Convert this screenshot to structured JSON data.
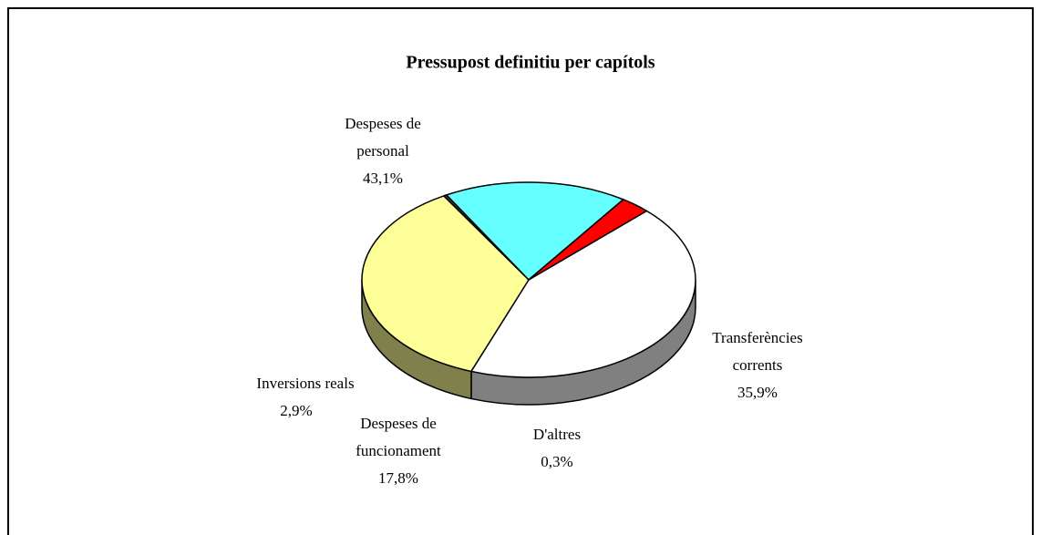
{
  "chart_data": {
    "type": "pie",
    "title": "Pressupost definitiu per capítols",
    "categories": [
      "Despeses de personal",
      "Transferències corrents",
      "D'altres",
      "Despeses de funcionament",
      "Inversions reals"
    ],
    "values": [
      43.1,
      35.9,
      0.3,
      17.8,
      2.9
    ],
    "value_labels": [
      "43,1%",
      "35,9%",
      "0,3%",
      "17,8%",
      "2,9%"
    ],
    "colors": [
      "#ffffff",
      "#ffff99",
      "#404040",
      "#66ffff",
      "#ff0000"
    ]
  }
}
